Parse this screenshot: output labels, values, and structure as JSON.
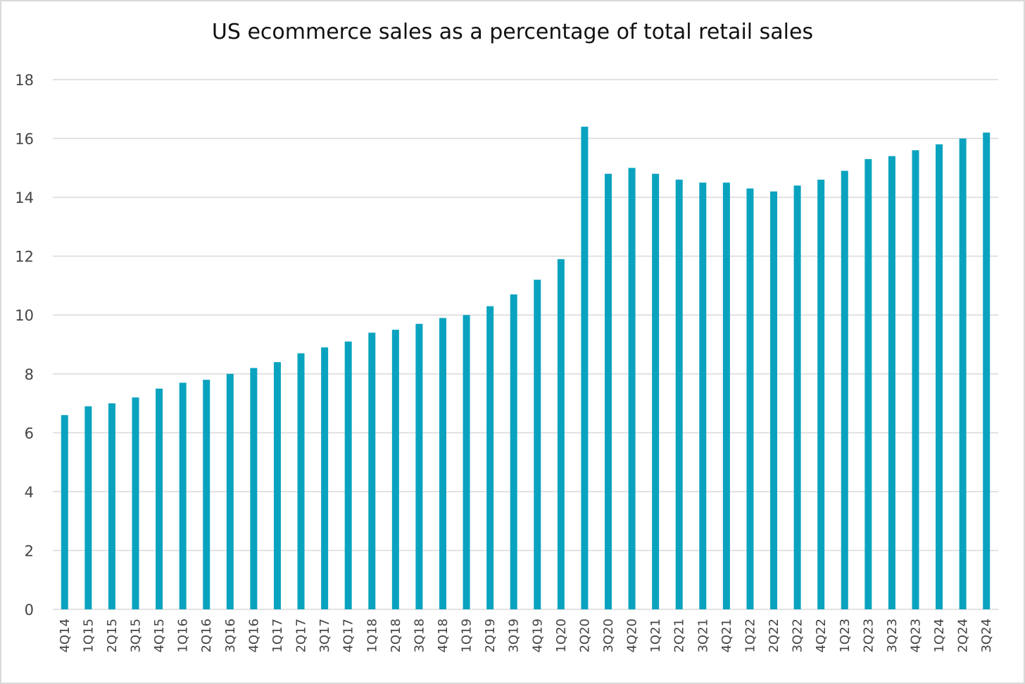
{
  "chart_data": {
    "type": "bar",
    "title": "US ecommerce sales as a percentage of total retail sales",
    "xlabel": "",
    "ylabel": "",
    "ylim": [
      0,
      18
    ],
    "yticks": [
      0,
      2,
      4,
      6,
      8,
      10,
      12,
      14,
      16,
      18
    ],
    "grid": true,
    "legend": "none",
    "bar_color": "#0aa3bf",
    "grid_color": "#d9d9d9",
    "categories": [
      "4Q14",
      "1Q15",
      "2Q15",
      "3Q15",
      "4Q15",
      "1Q16",
      "2Q16",
      "3Q16",
      "4Q16",
      "1Q17",
      "2Q17",
      "3Q17",
      "4Q17",
      "1Q18",
      "2Q18",
      "3Q18",
      "4Q18",
      "1Q19",
      "2Q19",
      "3Q19",
      "4Q19",
      "1Q20",
      "2Q20",
      "3Q20",
      "4Q20",
      "1Q21",
      "2Q21",
      "3Q21",
      "4Q21",
      "1Q22",
      "2Q22",
      "3Q22",
      "4Q22",
      "1Q23",
      "2Q23",
      "3Q23",
      "4Q23",
      "1Q24",
      "2Q24",
      "3Q24"
    ],
    "values": [
      6.6,
      6.9,
      7.0,
      7.2,
      7.5,
      7.7,
      7.8,
      8.0,
      8.2,
      8.4,
      8.7,
      8.9,
      9.1,
      9.4,
      9.5,
      9.7,
      9.9,
      10.0,
      10.3,
      10.7,
      11.2,
      11.9,
      16.4,
      14.8,
      15.0,
      14.8,
      14.6,
      14.5,
      14.5,
      14.3,
      14.2,
      14.4,
      14.6,
      14.9,
      15.3,
      15.4,
      15.6,
      15.8,
      16.0,
      16.2
    ]
  }
}
